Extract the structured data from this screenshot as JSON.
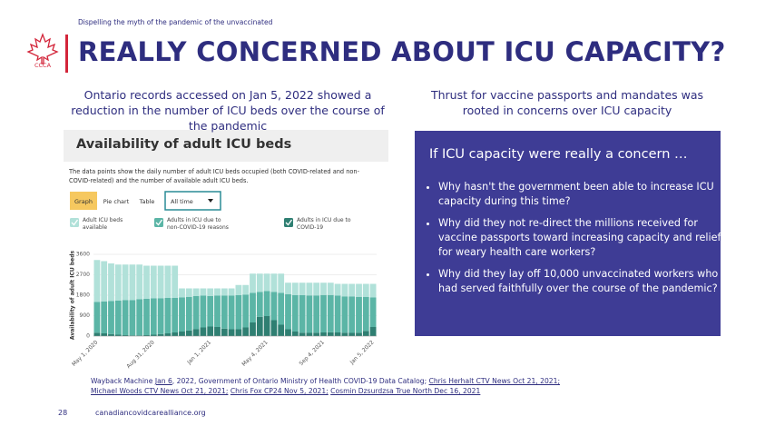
{
  "header": {
    "tagline": "Dispelling the myth of the pandemic of the unvaccinated",
    "logo": "CCCA",
    "title": "REALLY CONCERNED ABOUT ICU CAPACITY?"
  },
  "left_caption": "Ontario records accessed on Jan 5, 2022 showed a reduction in the number of ICU beds over the course of the pandemic",
  "right_caption": "Thrust for vaccine passports and mandates was rooted in concerns over ICU capacity",
  "embed": {
    "title": "Availability of adult ICU beds",
    "description": "The data points show the daily number of adult ICU beds occupied (both COVID-related and non-COVID-related) and the number of available adult ICU beds.",
    "tabs": [
      "Graph",
      "Pie chart",
      "Table"
    ],
    "dropdown": "All time"
  },
  "chart_data": {
    "type": "stacked-bar",
    "y_label": "Availability of adult ICU beds",
    "categories": [
      "May 1, 2020",
      null,
      null,
      null,
      null,
      null,
      null,
      null,
      "Aug 31, 2020",
      null,
      null,
      null,
      null,
      null,
      null,
      null,
      "Jan 1, 2021",
      null,
      null,
      null,
      null,
      null,
      null,
      null,
      "May 4, 2021",
      null,
      null,
      null,
      null,
      null,
      null,
      null,
      "Sep 4, 2021",
      null,
      null,
      null,
      null,
      null,
      null,
      "Jan 5, 2022"
    ],
    "series": [
      {
        "name": "Adults in ICU due to COVID-19",
        "color": "#2f7f72",
        "values": [
          150,
          120,
          90,
          60,
          40,
          30,
          30,
          40,
          60,
          90,
          120,
          160,
          200,
          250,
          300,
          380,
          420,
          400,
          330,
          300,
          300,
          380,
          600,
          850,
          880,
          700,
          500,
          300,
          200,
          150,
          140,
          150,
          160,
          170,
          160,
          150,
          140,
          150,
          230,
          400
        ]
      },
      {
        "name": "Adults in ICU due to non-COVID-19 reasons",
        "color": "#5bb5a6",
        "values": [
          1350,
          1400,
          1450,
          1500,
          1550,
          1550,
          1600,
          1600,
          1600,
          1580,
          1560,
          1520,
          1500,
          1480,
          1460,
          1400,
          1350,
          1380,
          1450,
          1480,
          1500,
          1450,
          1300,
          1100,
          1100,
          1250,
          1400,
          1550,
          1600,
          1650,
          1650,
          1640,
          1650,
          1640,
          1620,
          1600,
          1600,
          1580,
          1500,
          1300
        ]
      },
      {
        "name": "Adult ICU beds available",
        "color": "#b1e1d9",
        "values": [
          1850,
          1780,
          1660,
          1590,
          1560,
          1570,
          1520,
          1460,
          1440,
          1430,
          1420,
          1420,
          400,
          370,
          340,
          320,
          330,
          320,
          320,
          320,
          450,
          420,
          850,
          800,
          770,
          800,
          850,
          500,
          550,
          550,
          560,
          560,
          540,
          540,
          520,
          550,
          560,
          570,
          570,
          600
        ]
      }
    ],
    "ylim": [
      0,
      3600
    ],
    "yticks": [
      0,
      900,
      1800,
      2700,
      3600
    ],
    "grid": true
  },
  "panel": {
    "heading": "If ICU capacity were really a concern …",
    "bullets": [
      "Why hasn't the government been able to increase ICU capacity during this time?",
      "Why did they not re-direct the millions received for vaccine passports toward increasing capacity and relief for weary health care workers?",
      "Why did they lay off 10,000 unvaccinated workers who had served faithfully over the course of the pandemic?"
    ]
  },
  "sources": [
    "Wayback Machine",
    "Jan 6",
    ", 2022, Government of Ontario Ministry of Health COVID-19 Data Catalog;",
    "Chris Herhalt CTV News Oct 21, 2021;",
    "Michael Woods CTV News Oct 21, 2021;",
    "Chris Fox CP24 Nov 5, 2021;",
    "Cosmin Dzsurdzsa True North Dec 16, 2021"
  ],
  "footer": {
    "page": "28",
    "url": "canadiancovidcarealliance.org"
  }
}
